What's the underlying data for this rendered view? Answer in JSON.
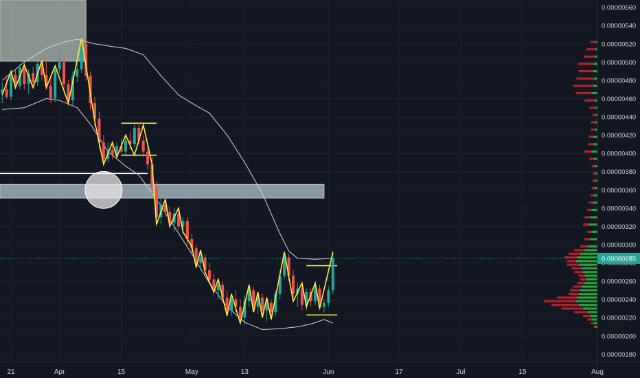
{
  "chart_data": {
    "type": "candlestick",
    "title": "",
    "y_ticks": [
      "0.00000560",
      "0.00000540",
      "0.00000520",
      "0.00000500",
      "0.00000480",
      "0.00000460",
      "0.00000440",
      "0.00000420",
      "0.00000400",
      "0.00000380",
      "0.00000360",
      "0.00000340",
      "0.00000320",
      "0.00000300",
      "0.00000280",
      "0.00000260",
      "0.00000240",
      "0.00000220",
      "0.00000200",
      "0.00000180"
    ],
    "y_tick_values": [
      560,
      540,
      520,
      500,
      480,
      460,
      440,
      420,
      400,
      380,
      360,
      340,
      320,
      300,
      280,
      260,
      240,
      220,
      200,
      180
    ],
    "y_unit_note": "values in 1e-8",
    "ylim": [
      172,
      568
    ],
    "x_ticks": [
      {
        "label": "21",
        "day": -11
      },
      {
        "label": "Apr",
        "day": 0
      },
      {
        "label": "15",
        "day": 14
      },
      {
        "label": "May",
        "day": 30
      },
      {
        "label": "13",
        "day": 42
      },
      {
        "label": "Jun",
        "day": 61
      },
      {
        "label": "17",
        "day": 77
      },
      {
        "label": "Jul",
        "day": 91
      },
      {
        "label": "15",
        "day": 105
      },
      {
        "label": "Aug",
        "day": 122
      }
    ],
    "x_axis_origin": "Apr 1",
    "xlim": [
      -13.5,
      122
    ],
    "current_price": {
      "label": "0.00000285",
      "value": 285,
      "color": "#26a69a"
    },
    "candles": [
      {
        "d": -13,
        "o": 466,
        "h": 478,
        "l": 455,
        "c": 470
      },
      {
        "d": -12,
        "o": 470,
        "h": 482,
        "l": 460,
        "c": 462
      },
      {
        "d": -11,
        "o": 462,
        "h": 490,
        "l": 458,
        "c": 486
      },
      {
        "d": -10,
        "o": 486,
        "h": 492,
        "l": 470,
        "c": 474
      },
      {
        "d": -9,
        "o": 474,
        "h": 498,
        "l": 470,
        "c": 494
      },
      {
        "d": -8,
        "o": 494,
        "h": 500,
        "l": 470,
        "c": 476
      },
      {
        "d": -7,
        "o": 476,
        "h": 492,
        "l": 465,
        "c": 488
      },
      {
        "d": -6,
        "o": 488,
        "h": 495,
        "l": 472,
        "c": 478
      },
      {
        "d": -5,
        "o": 478,
        "h": 502,
        "l": 474,
        "c": 498
      },
      {
        "d": -4,
        "o": 498,
        "h": 505,
        "l": 480,
        "c": 486
      },
      {
        "d": -3,
        "o": 486,
        "h": 500,
        "l": 470,
        "c": 474
      },
      {
        "d": -2,
        "o": 474,
        "h": 484,
        "l": 455,
        "c": 460
      },
      {
        "d": -1,
        "o": 460,
        "h": 496,
        "l": 456,
        "c": 492
      },
      {
        "d": 0,
        "o": 492,
        "h": 512,
        "l": 488,
        "c": 500
      },
      {
        "d": 1,
        "o": 500,
        "h": 506,
        "l": 470,
        "c": 476
      },
      {
        "d": 2,
        "o": 476,
        "h": 480,
        "l": 452,
        "c": 458
      },
      {
        "d": 3,
        "o": 458,
        "h": 490,
        "l": 452,
        "c": 484
      },
      {
        "d": 4,
        "o": 484,
        "h": 500,
        "l": 478,
        "c": 492
      },
      {
        "d": 5,
        "o": 492,
        "h": 530,
        "l": 488,
        "c": 520
      },
      {
        "d": 6,
        "o": 520,
        "h": 526,
        "l": 480,
        "c": 485
      },
      {
        "d": 7,
        "o": 485,
        "h": 490,
        "l": 448,
        "c": 455
      },
      {
        "d": 8,
        "o": 455,
        "h": 462,
        "l": 430,
        "c": 438
      },
      {
        "d": 9,
        "o": 438,
        "h": 446,
        "l": 405,
        "c": 412
      },
      {
        "d": 10,
        "o": 412,
        "h": 420,
        "l": 386,
        "c": 394
      },
      {
        "d": 11,
        "o": 394,
        "h": 412,
        "l": 390,
        "c": 404
      },
      {
        "d": 12,
        "o": 404,
        "h": 410,
        "l": 394,
        "c": 398
      },
      {
        "d": 13,
        "o": 398,
        "h": 412,
        "l": 394,
        "c": 408
      },
      {
        "d": 14,
        "o": 408,
        "h": 416,
        "l": 400,
        "c": 402
      },
      {
        "d": 15,
        "o": 402,
        "h": 420,
        "l": 398,
        "c": 414
      },
      {
        "d": 16,
        "o": 414,
        "h": 424,
        "l": 404,
        "c": 410
      },
      {
        "d": 17,
        "o": 410,
        "h": 432,
        "l": 406,
        "c": 428
      },
      {
        "d": 18,
        "o": 428,
        "h": 434,
        "l": 410,
        "c": 414
      },
      {
        "d": 19,
        "o": 414,
        "h": 420,
        "l": 396,
        "c": 402
      },
      {
        "d": 20,
        "o": 402,
        "h": 410,
        "l": 382,
        "c": 388
      },
      {
        "d": 21,
        "o": 388,
        "h": 396,
        "l": 356,
        "c": 362
      },
      {
        "d": 22,
        "o": 362,
        "h": 370,
        "l": 320,
        "c": 330
      },
      {
        "d": 23,
        "o": 330,
        "h": 350,
        "l": 322,
        "c": 344
      },
      {
        "d": 24,
        "o": 344,
        "h": 352,
        "l": 330,
        "c": 336
      },
      {
        "d": 25,
        "o": 336,
        "h": 342,
        "l": 318,
        "c": 324
      },
      {
        "d": 26,
        "o": 324,
        "h": 340,
        "l": 314,
        "c": 334
      },
      {
        "d": 27,
        "o": 334,
        "h": 338,
        "l": 316,
        "c": 320
      },
      {
        "d": 28,
        "o": 320,
        "h": 330,
        "l": 312,
        "c": 326
      },
      {
        "d": 29,
        "o": 326,
        "h": 330,
        "l": 300,
        "c": 306
      },
      {
        "d": 30,
        "o": 306,
        "h": 312,
        "l": 290,
        "c": 296
      },
      {
        "d": 31,
        "o": 296,
        "h": 300,
        "l": 274,
        "c": 280
      },
      {
        "d": 32,
        "o": 280,
        "h": 294,
        "l": 272,
        "c": 286
      },
      {
        "d": 33,
        "o": 286,
        "h": 290,
        "l": 268,
        "c": 272
      },
      {
        "d": 34,
        "o": 272,
        "h": 280,
        "l": 256,
        "c": 262
      },
      {
        "d": 35,
        "o": 262,
        "h": 268,
        "l": 244,
        "c": 250
      },
      {
        "d": 36,
        "o": 250,
        "h": 262,
        "l": 240,
        "c": 256
      },
      {
        "d": 37,
        "o": 256,
        "h": 260,
        "l": 236,
        "c": 242
      },
      {
        "d": 38,
        "o": 242,
        "h": 250,
        "l": 222,
        "c": 228
      },
      {
        "d": 39,
        "o": 228,
        "h": 246,
        "l": 222,
        "c": 240
      },
      {
        "d": 40,
        "o": 240,
        "h": 250,
        "l": 226,
        "c": 232
      },
      {
        "d": 41,
        "o": 232,
        "h": 240,
        "l": 214,
        "c": 220
      },
      {
        "d": 42,
        "o": 220,
        "h": 244,
        "l": 212,
        "c": 238
      },
      {
        "d": 43,
        "o": 238,
        "h": 256,
        "l": 232,
        "c": 250
      },
      {
        "d": 44,
        "o": 250,
        "h": 254,
        "l": 226,
        "c": 232
      },
      {
        "d": 45,
        "o": 232,
        "h": 248,
        "l": 224,
        "c": 242
      },
      {
        "d": 46,
        "o": 242,
        "h": 246,
        "l": 220,
        "c": 228
      },
      {
        "d": 47,
        "o": 228,
        "h": 240,
        "l": 216,
        "c": 236
      },
      {
        "d": 48,
        "o": 236,
        "h": 240,
        "l": 222,
        "c": 226
      },
      {
        "d": 49,
        "o": 226,
        "h": 250,
        "l": 222,
        "c": 246
      },
      {
        "d": 50,
        "o": 246,
        "h": 272,
        "l": 240,
        "c": 266
      },
      {
        "d": 51,
        "o": 266,
        "h": 292,
        "l": 262,
        "c": 286
      },
      {
        "d": 52,
        "o": 286,
        "h": 290,
        "l": 260,
        "c": 266
      },
      {
        "d": 53,
        "o": 266,
        "h": 272,
        "l": 240,
        "c": 246
      },
      {
        "d": 54,
        "o": 246,
        "h": 258,
        "l": 232,
        "c": 252
      },
      {
        "d": 55,
        "o": 252,
        "h": 256,
        "l": 228,
        "c": 234
      },
      {
        "d": 56,
        "o": 234,
        "h": 252,
        "l": 228,
        "c": 248
      },
      {
        "d": 57,
        "o": 248,
        "h": 252,
        "l": 232,
        "c": 238
      },
      {
        "d": 58,
        "o": 238,
        "h": 256,
        "l": 234,
        "c": 252
      },
      {
        "d": 59,
        "o": 252,
        "h": 256,
        "l": 228,
        "c": 232
      },
      {
        "d": 60,
        "o": 232,
        "h": 240,
        "l": 226,
        "c": 236
      },
      {
        "d": 61,
        "o": 236,
        "h": 254,
        "l": 232,
        "c": 250
      },
      {
        "d": 62,
        "o": 250,
        "h": 292,
        "l": 246,
        "c": 285
      }
    ],
    "bollinger_upper": [
      [
        -13,
        480
      ],
      [
        -8,
        500
      ],
      [
        -3,
        515
      ],
      [
        1,
        522
      ],
      [
        4,
        525
      ],
      [
        8,
        520
      ],
      [
        12,
        517
      ],
      [
        15,
        515
      ],
      [
        19,
        508
      ],
      [
        23,
        485
      ],
      [
        27,
        464
      ],
      [
        30,
        455
      ],
      [
        34,
        444
      ],
      [
        38,
        420
      ],
      [
        42,
        390
      ],
      [
        46,
        356
      ],
      [
        50,
        312
      ],
      [
        52,
        293
      ],
      [
        54,
        285
      ],
      [
        58,
        284
      ],
      [
        62,
        285
      ]
    ],
    "bollinger_lower": [
      [
        -13,
        448
      ],
      [
        -8,
        450
      ],
      [
        -3,
        460
      ],
      [
        0,
        458
      ],
      [
        4,
        450
      ],
      [
        7,
        432
      ],
      [
        11,
        402
      ],
      [
        15,
        386
      ],
      [
        18,
        376
      ],
      [
        22,
        350
      ],
      [
        26,
        320
      ],
      [
        30,
        290
      ],
      [
        34,
        258
      ],
      [
        38,
        232
      ],
      [
        42,
        215
      ],
      [
        46,
        207
      ],
      [
        50,
        208
      ],
      [
        54,
        210
      ],
      [
        57,
        213
      ],
      [
        60,
        218
      ],
      [
        62,
        214
      ]
    ],
    "zigzag": [
      [
        -13,
        464
      ],
      [
        -11,
        490
      ],
      [
        -10,
        472
      ],
      [
        -8,
        497
      ],
      [
        -6,
        472
      ],
      [
        -4,
        502
      ],
      [
        -3,
        472
      ],
      [
        -1,
        496
      ],
      [
        2,
        455
      ],
      [
        5,
        526
      ],
      [
        8,
        435
      ],
      [
        10,
        388
      ],
      [
        12,
        412
      ],
      [
        13,
        396
      ],
      [
        15,
        420
      ],
      [
        17,
        398
      ],
      [
        19,
        431
      ],
      [
        21,
        388
      ],
      [
        22,
        322
      ],
      [
        24,
        350
      ],
      [
        25,
        320
      ],
      [
        27,
        340
      ],
      [
        28,
        314
      ],
      [
        30,
        298
      ],
      [
        31,
        275
      ],
      [
        32,
        294
      ],
      [
        33,
        270
      ],
      [
        35,
        248
      ],
      [
        36,
        262
      ],
      [
        38,
        222
      ],
      [
        39,
        246
      ],
      [
        41,
        214
      ],
      [
        43,
        256
      ],
      [
        44,
        226
      ],
      [
        45,
        248
      ],
      [
        46,
        220
      ],
      [
        47,
        242
      ],
      [
        48,
        218
      ],
      [
        51,
        292
      ],
      [
        53,
        238
      ],
      [
        55,
        258
      ],
      [
        56,
        232
      ],
      [
        58,
        258
      ],
      [
        59,
        230
      ],
      [
        62,
        292
      ]
    ],
    "horizontal_lines": [
      {
        "y": 378,
        "d1": -13.5,
        "d2": 20,
        "color": "#ffffff"
      },
      {
        "y": 433,
        "d1": 14,
        "d2": 22,
        "color": "#ffeb3b"
      },
      {
        "y": 398,
        "d1": 14,
        "d2": 22,
        "color": "#ffeb3b"
      },
      {
        "y": 277,
        "d1": 56,
        "d2": 63,
        "color": "#ffeb3b"
      },
      {
        "y": 223,
        "d1": 56,
        "d2": 63,
        "color": "#ffeb3b"
      }
    ],
    "rectangles": [
      {
        "d1": -13.5,
        "d2": 6,
        "y_top": 568,
        "y_bottom": 501,
        "fill": "#b2bfb5"
      },
      {
        "d1": -13.5,
        "d2": 60,
        "y_top": 366,
        "y_bottom": 351,
        "fill": "#b2c6cc"
      }
    ],
    "circle": {
      "d": 10,
      "y": 360,
      "r_days": 4.2,
      "fill": "#e8e8e8"
    },
    "volume_profile": [
      {
        "p": 522,
        "up": 2,
        "down": 8
      },
      {
        "p": 514,
        "up": 3,
        "down": 12
      },
      {
        "p": 506,
        "up": 4,
        "down": 15
      },
      {
        "p": 498,
        "up": 5,
        "down": 22
      },
      {
        "p": 490,
        "up": 6,
        "down": 20
      },
      {
        "p": 482,
        "up": 5,
        "down": 24
      },
      {
        "p": 474,
        "up": 6,
        "down": 28
      },
      {
        "p": 466,
        "up": 8,
        "down": 22
      },
      {
        "p": 458,
        "up": 4,
        "down": 14
      },
      {
        "p": 450,
        "up": 3,
        "down": 8
      },
      {
        "p": 442,
        "up": 2,
        "down": 5
      },
      {
        "p": 434,
        "up": 3,
        "down": 6
      },
      {
        "p": 426,
        "up": 4,
        "down": 5
      },
      {
        "p": 418,
        "up": 6,
        "down": 6
      },
      {
        "p": 410,
        "up": 5,
        "down": 8
      },
      {
        "p": 402,
        "up": 8,
        "down": 10
      },
      {
        "p": 394,
        "up": 5,
        "down": 6
      },
      {
        "p": 386,
        "up": 4,
        "down": 4
      },
      {
        "p": 378,
        "up": 3,
        "down": 3
      },
      {
        "p": 370,
        "up": 3,
        "down": 4
      },
      {
        "p": 362,
        "up": 4,
        "down": 4
      },
      {
        "p": 354,
        "up": 5,
        "down": 5
      },
      {
        "p": 346,
        "up": 6,
        "down": 6
      },
      {
        "p": 338,
        "up": 8,
        "down": 6
      },
      {
        "p": 330,
        "up": 10,
        "down": 8
      },
      {
        "p": 322,
        "up": 12,
        "down": 8
      },
      {
        "p": 314,
        "up": 8,
        "down": 6
      },
      {
        "p": 306,
        "up": 10,
        "down": 8
      },
      {
        "p": 298,
        "up": 14,
        "down": 10
      },
      {
        "p": 294,
        "up": 18,
        "down": 14
      },
      {
        "p": 290,
        "up": 24,
        "down": 16
      },
      {
        "p": 286,
        "up": 28,
        "down": 18
      },
      {
        "p": 282,
        "up": 30,
        "down": 12
      },
      {
        "p": 278,
        "up": 26,
        "down": 16
      },
      {
        "p": 274,
        "up": 22,
        "down": 14
      },
      {
        "p": 270,
        "up": 20,
        "down": 12
      },
      {
        "p": 266,
        "up": 18,
        "down": 8
      },
      {
        "p": 262,
        "up": 16,
        "down": 8
      },
      {
        "p": 258,
        "up": 18,
        "down": 10
      },
      {
        "p": 254,
        "up": 22,
        "down": 12
      },
      {
        "p": 250,
        "up": 24,
        "down": 14
      },
      {
        "p": 246,
        "up": 26,
        "down": 14
      },
      {
        "p": 242,
        "up": 28,
        "down": 28
      },
      {
        "p": 238,
        "up": 30,
        "down": 44
      },
      {
        "p": 234,
        "up": 26,
        "down": 38
      },
      {
        "p": 230,
        "up": 20,
        "down": 30
      },
      {
        "p": 226,
        "up": 14,
        "down": 18
      },
      {
        "p": 222,
        "up": 10,
        "down": 10
      },
      {
        "p": 218,
        "up": 8,
        "down": 6
      },
      {
        "p": 214,
        "up": 5,
        "down": 4
      },
      {
        "p": 210,
        "up": 3,
        "down": 2
      }
    ]
  },
  "colors": {
    "background": "#131722",
    "grid": "#1e222d",
    "bull": "#26a69a",
    "bear": "#ef5350",
    "bollinger": "#d1d4dc",
    "zigzag": "#ffeb3b",
    "axis_text": "#d1d4dc",
    "profile_up": "#2bbd3f",
    "profile_down": "#d3202a"
  }
}
